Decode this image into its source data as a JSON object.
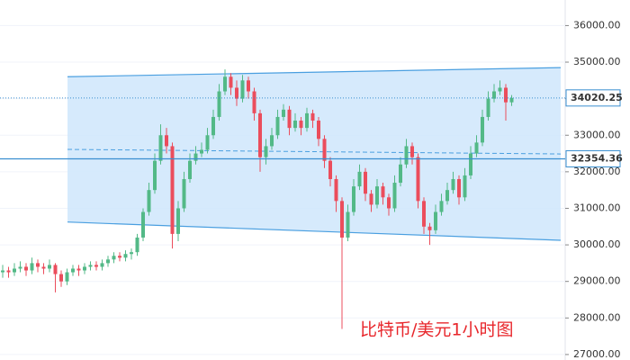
{
  "chart_data": {
    "type": "candlestick",
    "annotation": "比特币/美元1小时图",
    "up_color": "#53b987",
    "down_color": "#eb4d5c",
    "open": [
      29250,
      29300,
      29250,
      29350,
      29400,
      29300,
      29500,
      29400,
      29350,
      29450,
      29200,
      29000,
      29250,
      29350,
      29300,
      29400,
      29450,
      29400,
      29500,
      29600,
      29700,
      29650,
      29750,
      29800,
      30200,
      30900,
      31500,
      32300,
      33000,
      32700,
      30300,
      31000,
      31800,
      32300,
      32500,
      32600,
      33000,
      33500,
      34200,
      34600,
      34300,
      34000,
      34500,
      34200,
      33600,
      32400,
      32700,
      33000,
      33500,
      33700,
      33200,
      33400,
      33200,
      33600,
      33400,
      32900,
      32300,
      31800,
      31200,
      30200,
      30900,
      31600,
      32000,
      31400,
      31100,
      31600,
      31300,
      31000,
      31700,
      32200,
      32700,
      32400,
      31200,
      30500,
      30400,
      30900,
      31200,
      31500,
      31800,
      31300,
      31900,
      32500,
      32800,
      33500,
      34000,
      34200,
      34300,
      33900
    ],
    "high": [
      29450,
      29400,
      29500,
      29550,
      29500,
      29650,
      29600,
      29500,
      29600,
      29500,
      29300,
      29350,
      29450,
      29450,
      29500,
      29550,
      29550,
      29600,
      29700,
      29800,
      29800,
      29850,
      29900,
      30300,
      31000,
      31700,
      32500,
      33300,
      33200,
      32800,
      31200,
      32000,
      32500,
      32700,
      32800,
      33200,
      33700,
      34400,
      34800,
      34700,
      34500,
      34650,
      34600,
      34300,
      33700,
      32900,
      33200,
      33700,
      33850,
      33800,
      33600,
      33500,
      33750,
      33700,
      33500,
      33000,
      32400,
      31900,
      31300,
      31100,
      31800,
      32200,
      32100,
      31500,
      31800,
      31700,
      31400,
      31900,
      32400,
      32900,
      32800,
      32500,
      31300,
      30600,
      31100,
      31400,
      31700,
      32000,
      31900,
      32100,
      32700,
      33000,
      33700,
      34200,
      34400,
      34500,
      34400,
      34100
    ],
    "low": [
      29100,
      29100,
      29150,
      29250,
      29150,
      29200,
      29250,
      29200,
      29250,
      28700,
      28850,
      28900,
      29150,
      29150,
      29200,
      29300,
      29300,
      29300,
      29400,
      29500,
      29550,
      29550,
      29600,
      29700,
      30100,
      30800,
      31400,
      32200,
      32500,
      29900,
      30100,
      30900,
      31700,
      32200,
      32400,
      32500,
      32900,
      33400,
      34100,
      34100,
      33800,
      33900,
      34000,
      33400,
      32000,
      32200,
      32600,
      32900,
      33400,
      33000,
      33100,
      33000,
      33100,
      33200,
      32700,
      32100,
      31600,
      30900,
      27700,
      30100,
      30800,
      31500,
      31200,
      30900,
      31000,
      31100,
      30800,
      30900,
      31600,
      32100,
      32200,
      31000,
      30300,
      30000,
      30300,
      30800,
      31100,
      31400,
      31100,
      31200,
      31800,
      32400,
      32700,
      33400,
      33900,
      34100,
      33400,
      33800
    ],
    "close": [
      29300,
      29250,
      29350,
      29400,
      29300,
      29500,
      29400,
      29350,
      29450,
      29200,
      29000,
      29250,
      29350,
      29300,
      29400,
      29450,
      29400,
      29500,
      29600,
      29700,
      29650,
      29750,
      29800,
      30200,
      30900,
      31500,
      32300,
      33000,
      32700,
      30300,
      31000,
      31800,
      32300,
      32500,
      32600,
      33000,
      33500,
      34200,
      34600,
      34300,
      34000,
      34500,
      34200,
      33600,
      32400,
      32700,
      33000,
      33500,
      33700,
      33200,
      33400,
      33200,
      33600,
      33400,
      32900,
      32300,
      31800,
      31200,
      30200,
      30900,
      31600,
      32000,
      31400,
      31100,
      31600,
      31300,
      31000,
      31700,
      32200,
      32700,
      32400,
      31200,
      30500,
      30400,
      30900,
      31200,
      31500,
      31800,
      31300,
      31900,
      32500,
      32800,
      33500,
      34000,
      34200,
      34300,
      33900,
      34020.25
    ],
    "channel": {
      "upper": [
        34600,
        34850
      ],
      "lower": [
        30625,
        30125
      ]
    },
    "price_lines": [
      34020.25,
      32354.36
    ],
    "ylim": [
      26850,
      36700
    ],
    "yticks": [
      {
        "value": 27000,
        "label": "27000.00"
      },
      {
        "value": 28000,
        "label": "28000.00"
      },
      {
        "value": 29000,
        "label": "29000.00"
      },
      {
        "value": 30000,
        "label": "30000.00"
      },
      {
        "value": 31000,
        "label": "31000.00"
      },
      {
        "value": 32000,
        "label": "32000.00"
      },
      {
        "value": 33000,
        "label": "33000.00"
      },
      {
        "value": 34000,
        "label": "34000.00"
      },
      {
        "value": 35000,
        "label": "35000.00"
      },
      {
        "value": 36000,
        "label": "36000.00"
      }
    ],
    "grid": true
  }
}
